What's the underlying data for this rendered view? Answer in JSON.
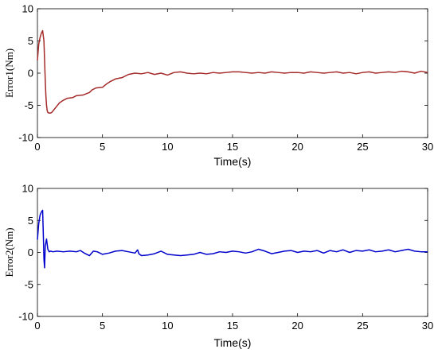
{
  "chart_data": [
    {
      "type": "line",
      "title": "",
      "xlabel": "Time(s)",
      "ylabel": "Error1(Nm)",
      "xlim": [
        0,
        30
      ],
      "ylim": [
        -10,
        10
      ],
      "xticks": [
        "0",
        "5",
        "10",
        "15",
        "20",
        "25",
        "30"
      ],
      "yticks": [
        "10",
        "5",
        "0",
        "-5",
        "-10"
      ],
      "grid": false,
      "series": [
        {
          "color": "#a52a2a",
          "x": [
            0,
            0.1,
            0.2,
            0.3,
            0.4,
            0.5,
            0.55,
            0.6,
            0.65,
            0.7,
            0.75,
            0.8,
            0.9,
            1.0,
            1.1,
            1.3,
            1.5,
            1.7,
            2.0,
            2.3,
            2.7,
            3.0,
            3.5,
            4.0,
            4.2,
            4.5,
            5.0,
            5.3,
            5.6,
            6.0,
            6.5,
            7.0,
            7.5,
            8.0,
            8.5,
            9.0,
            9.5,
            10.0,
            10.5,
            11.0,
            11.5,
            12.0,
            12.5,
            13.0,
            13.5,
            14.0,
            14.5,
            15.0,
            15.5,
            16.0,
            16.5,
            17.0,
            17.5,
            18.0,
            18.5,
            19.0,
            19.5,
            20.0,
            20.5,
            21.0,
            21.5,
            22.0,
            22.5,
            23.0,
            23.5,
            24.0,
            24.5,
            25.0,
            25.5,
            26.0,
            26.5,
            27.0,
            27.5,
            28.0,
            28.5,
            29.0,
            29.5,
            30.0
          ],
          "y": [
            2.0,
            4.5,
            5.5,
            6.2,
            6.6,
            5.0,
            2.0,
            -1.0,
            -3.5,
            -5.0,
            -5.8,
            -6.1,
            -6.2,
            -6.2,
            -6.1,
            -5.6,
            -5.1,
            -4.6,
            -4.2,
            -3.9,
            -3.8,
            -3.5,
            -3.4,
            -3.0,
            -2.6,
            -2.3,
            -2.2,
            -1.7,
            -1.3,
            -0.9,
            -0.7,
            -0.2,
            0.0,
            -0.1,
            0.1,
            -0.2,
            0.0,
            -0.3,
            0.1,
            0.2,
            0.0,
            -0.1,
            0.0,
            -0.1,
            0.1,
            0.0,
            0.1,
            0.2,
            0.2,
            0.1,
            0.0,
            0.1,
            0.0,
            0.2,
            0.1,
            0.0,
            0.1,
            0.1,
            0.0,
            0.2,
            0.1,
            0.0,
            0.1,
            0.2,
            0.0,
            0.1,
            -0.1,
            0.1,
            0.2,
            0.0,
            0.1,
            0.2,
            0.1,
            0.3,
            0.2,
            0.0,
            0.3,
            0.1
          ]
        }
      ]
    },
    {
      "type": "line",
      "title": "",
      "xlabel": "Time(s)",
      "ylabel": "Error2(Nm)",
      "xlim": [
        0,
        30
      ],
      "ylim": [
        -10,
        10
      ],
      "xticks": [
        "0",
        "5",
        "10",
        "15",
        "20",
        "25",
        "30"
      ],
      "yticks": [
        "10",
        "5",
        "0",
        "-5",
        "-10"
      ],
      "grid": false,
      "series": [
        {
          "color": "#0000cc",
          "x": [
            0,
            0.1,
            0.2,
            0.3,
            0.4,
            0.45,
            0.5,
            0.55,
            0.6,
            0.7,
            0.8,
            0.9,
            1.0,
            1.2,
            1.5,
            2.0,
            2.5,
            3.0,
            3.3,
            3.6,
            4.0,
            4.3,
            4.6,
            5.0,
            5.5,
            6.0,
            6.5,
            7.0,
            7.5,
            7.7,
            7.8,
            8.0,
            8.5,
            9.0,
            9.5,
            10.0,
            10.5,
            11.0,
            11.5,
            12.0,
            12.5,
            13.0,
            13.5,
            14.0,
            14.5,
            15.0,
            15.5,
            16.0,
            16.5,
            17.0,
            17.5,
            18.0,
            18.5,
            19.0,
            19.5,
            20.0,
            20.5,
            21.0,
            21.5,
            22.0,
            22.5,
            23.0,
            23.5,
            24.0,
            24.5,
            25.0,
            25.5,
            26.0,
            26.5,
            27.0,
            27.5,
            28.0,
            28.5,
            29.0,
            29.5,
            30.0
          ],
          "y": [
            2.0,
            4.5,
            5.8,
            6.3,
            6.6,
            3.0,
            -1.0,
            -2.4,
            1.0,
            2.1,
            0.5,
            0.1,
            0.2,
            0.1,
            0.2,
            0.1,
            0.2,
            0.1,
            0.3,
            -0.1,
            -0.5,
            0.2,
            0.1,
            -0.3,
            -0.1,
            0.2,
            0.3,
            0.1,
            -0.1,
            0.4,
            -0.2,
            -0.5,
            -0.4,
            -0.2,
            0.2,
            -0.3,
            -0.4,
            -0.5,
            -0.4,
            -0.3,
            0.0,
            -0.3,
            -0.2,
            0.1,
            0.0,
            0.2,
            0.1,
            -0.1,
            0.1,
            0.5,
            0.2,
            -0.2,
            0.0,
            0.2,
            0.3,
            0.0,
            0.2,
            0.1,
            0.3,
            -0.1,
            0.3,
            0.1,
            0.4,
            0.0,
            0.3,
            0.2,
            0.4,
            0.1,
            0.2,
            0.4,
            0.1,
            0.3,
            0.5,
            0.2,
            0.1,
            0.1
          ]
        }
      ]
    }
  ]
}
